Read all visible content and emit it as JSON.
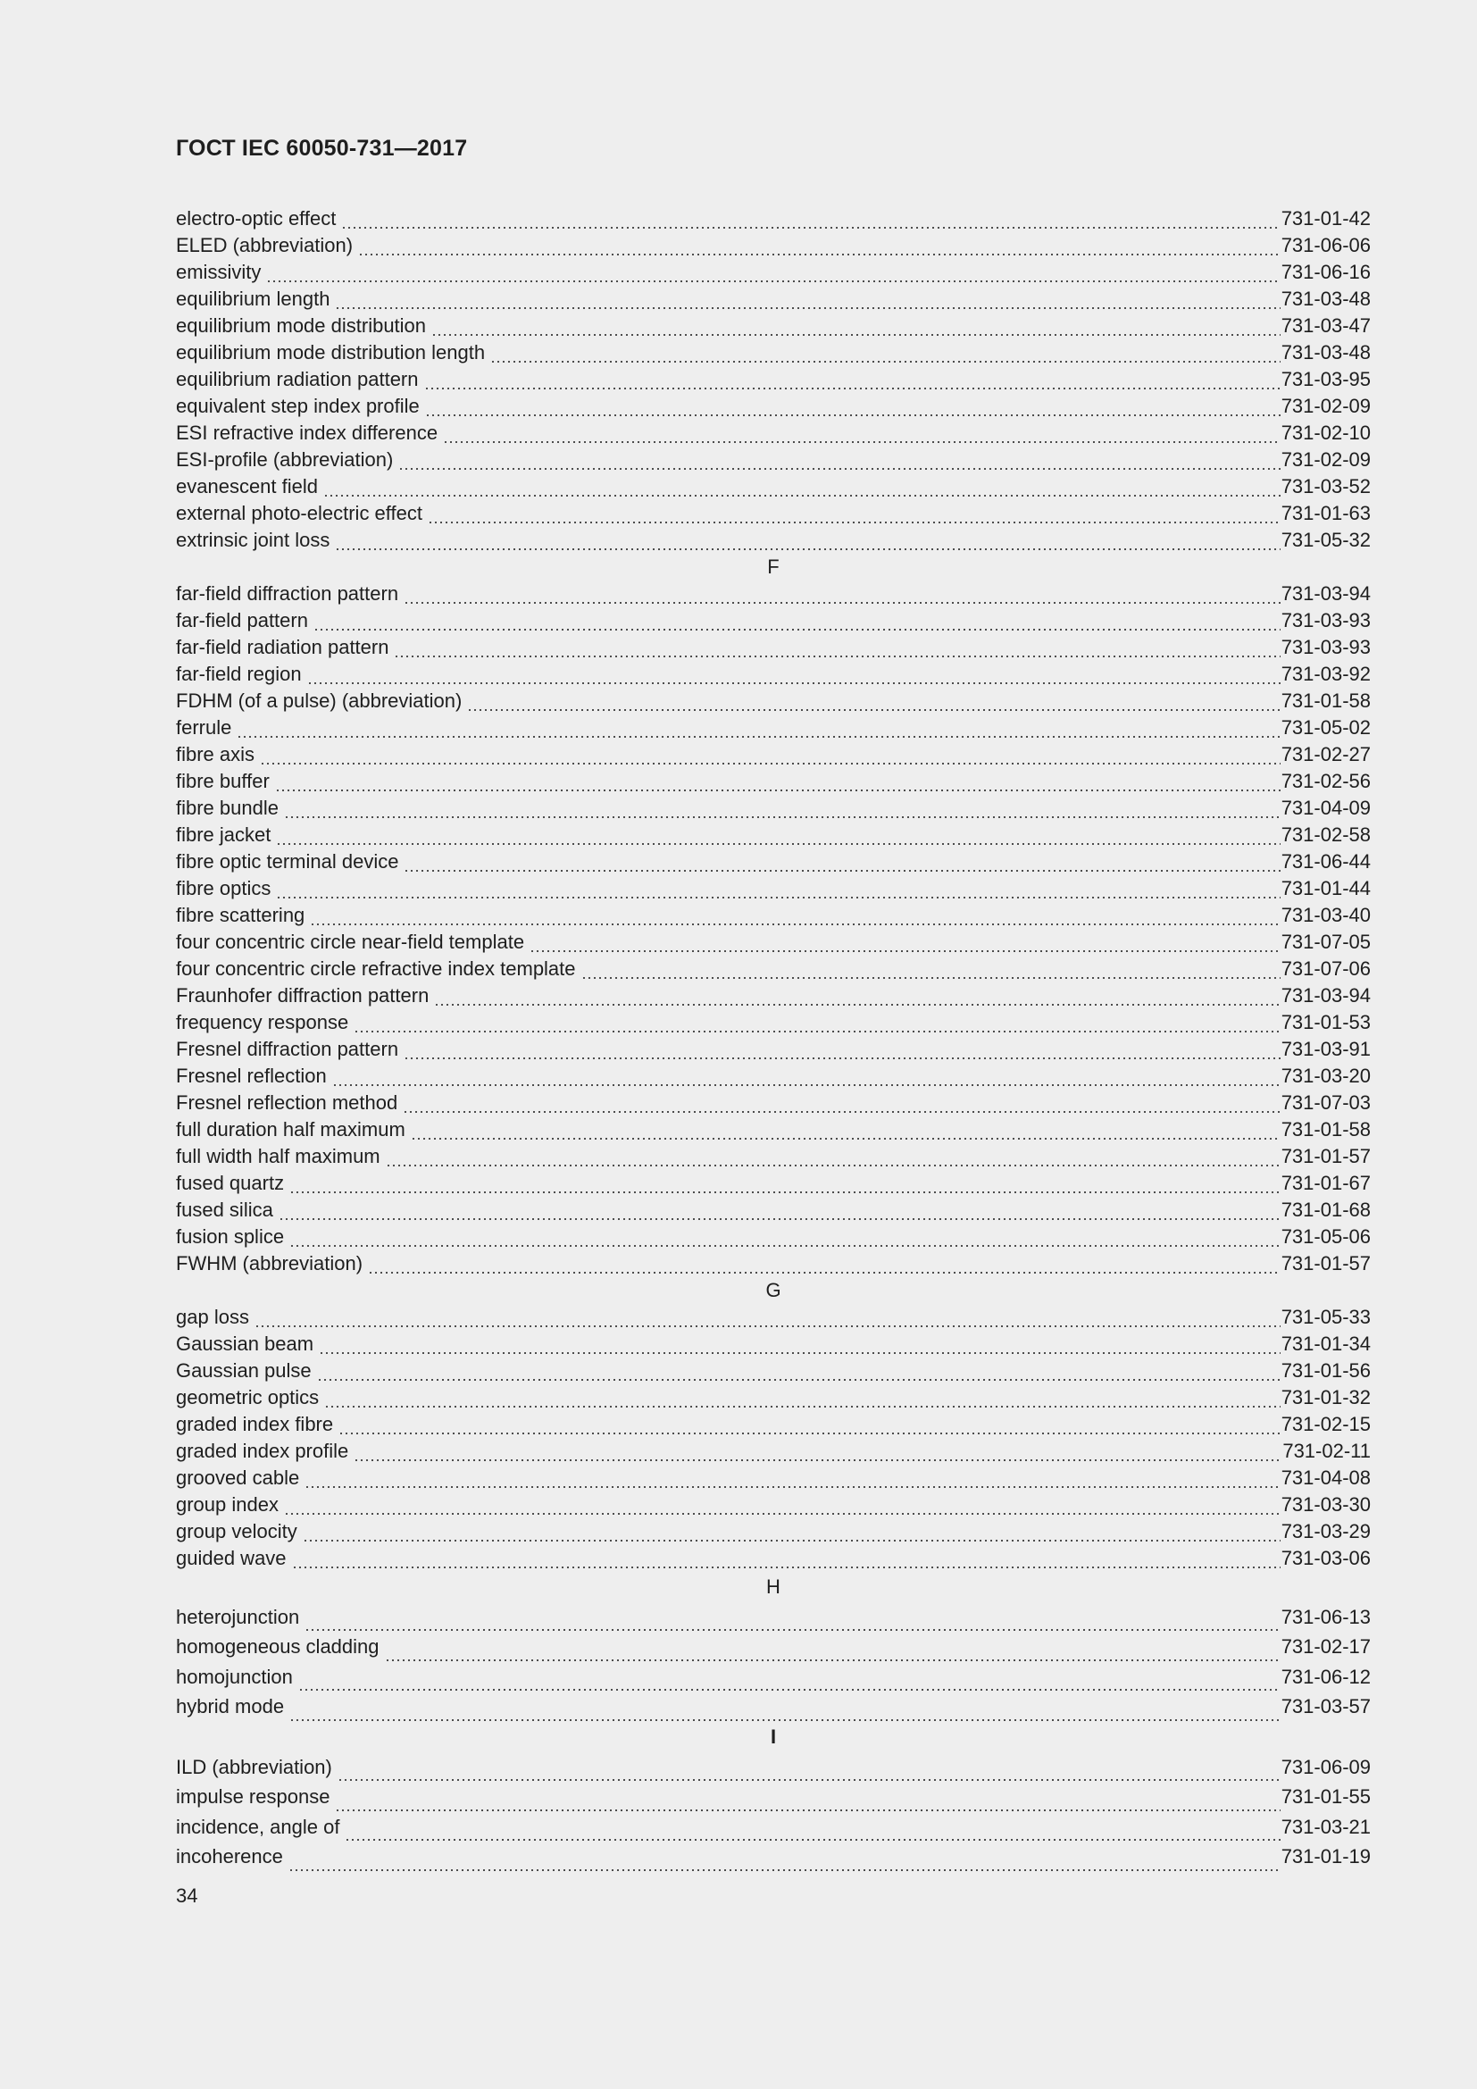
{
  "header": {
    "title": "ГОСТ IEC 60050-731—2017"
  },
  "page_number": "34",
  "sections": [
    {
      "letter": "",
      "entries": [
        {
          "term": "electro-optic effect",
          "ref": "731-01-42"
        },
        {
          "term": "ELED (abbreviation)",
          "ref": "731-06-06"
        },
        {
          "term": "emissivity",
          "ref": "731-06-16"
        },
        {
          "term": "equilibrium length",
          "ref": "731-03-48"
        },
        {
          "term": "equilibrium mode distribution",
          "ref": "731-03-47"
        },
        {
          "term": "equilibrium mode distribution length",
          "ref": "731-03-48"
        },
        {
          "term": "equilibrium radiation pattern",
          "ref": "731-03-95"
        },
        {
          "term": "equivalent step index profile",
          "ref": "731-02-09"
        },
        {
          "term": "ESI refractive index difference",
          "ref": "731-02-10"
        },
        {
          "term": "ESI-profile (abbreviation)",
          "ref": "731-02-09"
        },
        {
          "term": "evanescent field",
          "ref": "731-03-52"
        },
        {
          "term": "external photo-electric effect",
          "ref": "731-01-63"
        },
        {
          "term": "extrinsic joint loss",
          "ref": "731-05-32"
        }
      ]
    },
    {
      "letter": "F",
      "entries": [
        {
          "term": "far-field diffraction pattern",
          "ref": "731-03-94"
        },
        {
          "term": "far-field pattern",
          "ref": "731-03-93"
        },
        {
          "term": "far-field radiation pattern",
          "ref": "731-03-93"
        },
        {
          "term": "far-field region",
          "ref": "731-03-92"
        },
        {
          "term": "FDHM (of a pulse) (abbreviation)",
          "ref": "731-01-58"
        },
        {
          "term": "ferrule",
          "ref": "731-05-02"
        },
        {
          "term": "fibre axis",
          "ref": "731-02-27"
        },
        {
          "term": "fibre buffer",
          "ref": "731-02-56"
        },
        {
          "term": "fibre bundle",
          "ref": "731-04-09"
        },
        {
          "term": "fibre jacket",
          "ref": "731-02-58"
        },
        {
          "term": "fibre optic terminal device",
          "ref": "731-06-44"
        },
        {
          "term": "fibre optics",
          "ref": "731-01-44"
        },
        {
          "term": "fibre scattering",
          "ref": "731-03-40"
        },
        {
          "term": "four concentric circle near-field template",
          "ref": "731-07-05"
        },
        {
          "term": "four concentric circle refractive index template",
          "ref": "731-07-06"
        },
        {
          "term": "Fraunhofer diffraction pattern",
          "ref": "731-03-94"
        },
        {
          "term": "frequency response",
          "ref": "731-01-53"
        },
        {
          "term": "Fresnel diffraction pattern",
          "ref": "731-03-91"
        },
        {
          "term": "Fresnel reflection",
          "ref": "731-03-20"
        },
        {
          "term": "Fresnel reflection method",
          "ref": "731-07-03"
        },
        {
          "term": "full duration half maximum",
          "ref": "731-01-58"
        },
        {
          "term": "full width half maximum",
          "ref": "731-01-57"
        },
        {
          "term": "fused quartz",
          "ref": "731-01-67"
        },
        {
          "term": "fused silica",
          "ref": "731-01-68"
        },
        {
          "term": "fusion splice",
          "ref": "731-05-06"
        },
        {
          "term": "FWHM (abbreviation)",
          "ref": "731-01-57"
        }
      ]
    },
    {
      "letter": "G",
      "entries": [
        {
          "term": "gap loss",
          "ref": "731-05-33"
        },
        {
          "term": "Gaussian beam",
          "ref": "731-01-34"
        },
        {
          "term": "Gaussian pulse",
          "ref": "731-01-56"
        },
        {
          "term": "geometric optics",
          "ref": "731-01-32"
        },
        {
          "term": "graded index fibre",
          "ref": "731-02-15"
        },
        {
          "term": "graded index profile",
          "ref": "731-02-11"
        },
        {
          "term": "grooved cable",
          "ref": "731-04-08"
        },
        {
          "term": "group index",
          "ref": "731-03-30"
        },
        {
          "term": "group velocity",
          "ref": "731-03-29"
        },
        {
          "term": "guided wave",
          "ref": "731-03-06"
        }
      ]
    },
    {
      "letter": "H",
      "entries": [
        {
          "term": "heterojunction",
          "ref": "731-06-13"
        },
        {
          "term": "homogeneous cladding",
          "ref": "731-02-17"
        },
        {
          "term": "homojunction",
          "ref": "731-06-12"
        },
        {
          "term": "hybrid mode",
          "ref": "731-03-57"
        }
      ]
    },
    {
      "letter": "I",
      "entries": [
        {
          "term": "ILD (abbreviation)",
          "ref": "731-06-09"
        },
        {
          "term": "impulse response",
          "ref": "731-01-55"
        },
        {
          "term": "incidence, angle of",
          "ref": "731-03-21"
        },
        {
          "term": "incoherence",
          "ref": "731-01-19"
        }
      ]
    }
  ]
}
